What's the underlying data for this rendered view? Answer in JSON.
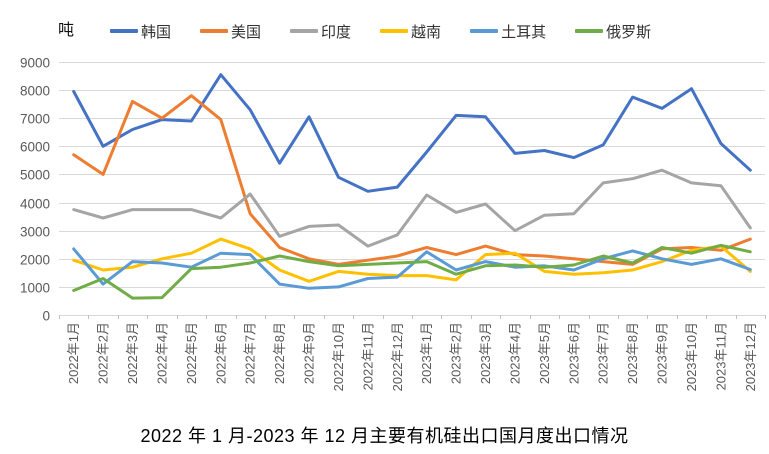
{
  "chart_data": {
    "type": "line",
    "title": "2022 年 1 月-2023 年 12 月主要有机硅出口国月度出口情况",
    "unit": "吨",
    "legend_position": "top",
    "grid": "horizontal",
    "ylim": [
      0,
      9000
    ],
    "y_ticks": [
      0,
      1000,
      2000,
      3000,
      4000,
      5000,
      6000,
      7000,
      8000,
      9000
    ],
    "categories": [
      "2022年1月",
      "2022年2月",
      "2022年3月",
      "2022年4月",
      "2022年5月",
      "2022年6月",
      "2022年7月",
      "2022年8月",
      "2022年9月",
      "2022年10月",
      "2022年11月",
      "2022年12月",
      "2023年1月",
      "2023年2月",
      "2023年3月",
      "2023年4月",
      "2023年5月",
      "2023年6月",
      "2023年7月",
      "2023年8月",
      "2023年9月",
      "2023年10月",
      "2023年11月",
      "2023年12月"
    ],
    "series": [
      {
        "id": "korea",
        "label": "韩国",
        "color": "#4472C4",
        "values": [
          7950,
          6000,
          6600,
          6950,
          6900,
          8550,
          7300,
          5400,
          7050,
          4900,
          4400,
          4550,
          5800,
          7100,
          7050,
          5750,
          5850,
          5600,
          6050,
          7750,
          7350,
          8050,
          6100,
          5150
        ]
      },
      {
        "id": "usa",
        "label": "美国",
        "color": "#ED7D31",
        "values": [
          5700,
          5000,
          7600,
          7000,
          7800,
          6950,
          3600,
          2400,
          2000,
          1800,
          1950,
          2100,
          2400,
          2150,
          2450,
          2150,
          2100,
          2000,
          1900,
          1800,
          2350,
          2400,
          2300,
          2700
        ]
      },
      {
        "id": "india",
        "label": "印度",
        "color": "#A5A5A5",
        "values": [
          3750,
          3450,
          3750,
          3750,
          3750,
          3450,
          4300,
          2800,
          3150,
          3200,
          2450,
          2850,
          4270,
          3650,
          3950,
          3000,
          3550,
          3600,
          4700,
          4850,
          5150,
          4700,
          4600,
          3100
        ]
      },
      {
        "id": "vietnam",
        "label": "越南",
        "color": "#FFC000",
        "values": [
          1950,
          1600,
          1700,
          2000,
          2200,
          2700,
          2350,
          1600,
          1200,
          1550,
          1450,
          1400,
          1400,
          1250,
          2150,
          2200,
          1550,
          1450,
          1500,
          1600,
          1900,
          2300,
          2450,
          1550
        ]
      },
      {
        "id": "turkey",
        "label": "土耳其",
        "color": "#5B9BD5",
        "values": [
          2350,
          1100,
          1900,
          1850,
          1700,
          2200,
          2150,
          1100,
          950,
          1000,
          1300,
          1350,
          2250,
          1600,
          1900,
          1700,
          1750,
          1600,
          2000,
          2280,
          2000,
          1800,
          2000,
          1620
        ]
      },
      {
        "id": "russia",
        "label": "俄罗斯",
        "color": "#70AD47",
        "values": [
          870,
          1300,
          600,
          620,
          1650,
          1700,
          1850,
          2100,
          1900,
          1750,
          1800,
          1850,
          1900,
          1450,
          1750,
          1780,
          1700,
          1780,
          2100,
          1850,
          2400,
          2200,
          2480,
          2250
        ]
      }
    ],
    "axis_color": "#D9D9D9",
    "tick_color": "#BFBFBF",
    "label_color": "#595959"
  }
}
